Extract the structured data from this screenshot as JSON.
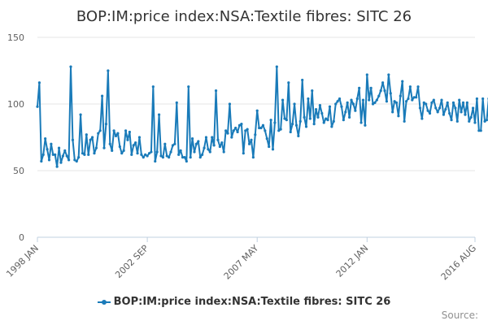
{
  "chart_data": {
    "type": "line",
    "title": "BOP:IM:price index:NSA:Textile fibres: SITC 26",
    "y_ticks": [
      "0",
      "50",
      "100",
      "150"
    ],
    "ylim": [
      0,
      150
    ],
    "x_tick_labels": [
      "1998 JAN",
      "2002 SEP",
      "2007 MAY",
      "2012 JAN",
      "2016 AUG"
    ],
    "x_range": [
      "1998 JAN",
      "2016 AUG"
    ],
    "grid": "horizontal",
    "legend_position": "bottom",
    "series": [
      {
        "name": "BOP:IM:price index:NSA:Textile fibres: SITC 26",
        "color": "#1a7bb9",
        "start": "1998 JAN",
        "values": [
          98,
          116,
          57,
          62,
          74,
          66,
          58,
          70,
          62,
          62,
          53,
          67,
          56,
          61,
          65,
          61,
          58,
          128,
          73,
          58,
          57,
          60,
          92,
          63,
          62,
          77,
          62,
          73,
          75,
          63,
          67,
          78,
          80,
          106,
          67,
          85,
          125,
          70,
          65,
          80,
          76,
          78,
          68,
          63,
          65,
          80,
          73,
          79,
          62,
          69,
          71,
          63,
          75,
          62,
          60,
          62,
          61,
          63,
          64,
          113,
          57,
          64,
          92,
          61,
          60,
          70,
          61,
          60,
          64,
          69,
          70,
          101,
          62,
          65,
          60,
          60,
          57,
          113,
          60,
          74,
          64,
          70,
          72,
          60,
          62,
          67,
          75,
          66,
          64,
          75,
          69,
          110,
          73,
          68,
          71,
          64,
          80,
          78,
          100,
          75,
          80,
          82,
          79,
          84,
          85,
          63,
          80,
          81,
          70,
          73,
          60,
          77,
          95,
          82,
          82,
          84,
          80,
          74,
          68,
          88,
          66,
          86,
          128,
          80,
          81,
          103,
          89,
          88,
          116,
          79,
          85,
          100,
          84,
          76,
          87,
          118,
          90,
          83,
          104,
          89,
          110,
          85,
          96,
          90,
          99,
          93,
          86,
          89,
          88,
          98,
          83,
          87,
          100,
          102,
          104,
          98,
          88,
          94,
          101,
          90,
          103,
          100,
          95,
          104,
          112,
          86,
          103,
          84,
          122,
          103,
          112,
          100,
          101,
          103,
          106,
          110,
          116,
          110,
          102,
          122,
          108,
          94,
          102,
          101,
          91,
          106,
          117,
          87,
          102,
          104,
          113,
          103,
          105,
          105,
          113,
          97,
          89,
          101,
          100,
          95,
          93,
          101,
          103,
          97,
          94,
          97,
          103,
          92,
          96,
          101,
          93,
          88,
          101,
          97,
          87,
          103,
          94,
          101,
          92,
          101,
          87,
          90,
          97,
          86,
          104,
          80,
          80,
          104,
          87,
          88,
          104,
          82,
          91,
          107,
          103,
          85,
          107,
          100,
          97
        ]
      }
    ]
  },
  "legend": {
    "label": "BOP:IM:price index:NSA:Textile fibres: SITC 26"
  },
  "credits": {
    "text": "Source:"
  }
}
